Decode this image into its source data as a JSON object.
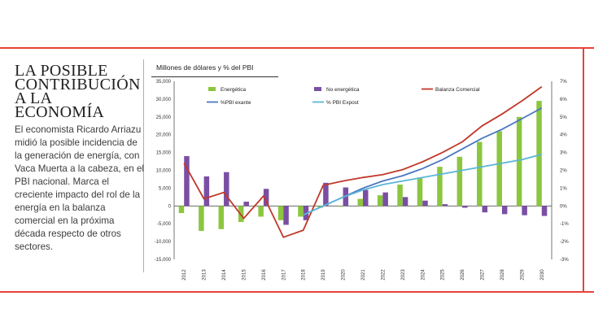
{
  "article": {
    "headline": [
      "LA POSIBLE",
      "CONTRIBUCIÓN",
      "A LA ECONOMÍA"
    ],
    "body": "El economista Ricardo Arriazu midió la posible incidencia de la generación de energía, con Vaca Muerta a la cabeza, en el PBI nacional. Marca el creciente impacto del rol de la energía en la balanza comercial en la próxima década respecto de otros sectores."
  },
  "chart_data": {
    "type": "bar",
    "title": "Millones de dólares y % del PBI",
    "categories": [
      "2012",
      "2013",
      "2014",
      "2015",
      "2016",
      "2017",
      "2018",
      "2019",
      "2020",
      "2021",
      "2022",
      "2023",
      "2024",
      "2025",
      "2026",
      "2027",
      "2028",
      "2029",
      "2030"
    ],
    "ylim": [
      -15000,
      35000
    ],
    "yticks": [
      "35,000",
      "30,000",
      "25,000",
      "20,000",
      "15,000",
      "10,000",
      "5,000",
      "0",
      "-5,000",
      "-10,000",
      "-15,000"
    ],
    "y2lim": [
      -3,
      7
    ],
    "y2ticks": [
      "7%",
      "6%",
      "5%",
      "4%",
      "3%",
      "2%",
      "1%",
      "0%",
      "-1%",
      "-2%",
      "-3%"
    ],
    "series": [
      {
        "name": "Energética",
        "kind": "bar",
        "axis": "left",
        "color": "#8cc63f",
        "values": [
          -2000,
          -7000,
          -6500,
          -4500,
          -3000,
          -4000,
          -3000,
          -500,
          -200,
          2000,
          3000,
          6000,
          8000,
          11000,
          13800,
          18000,
          21000,
          25000,
          29500
        ]
      },
      {
        "name": "No energética",
        "kind": "bar",
        "axis": "left",
        "color": "#7a4fa3",
        "values": [
          14000,
          8300,
          9500,
          1200,
          4800,
          -5300,
          -4000,
          6500,
          5200,
          4500,
          3800,
          2500,
          1500,
          500,
          -500,
          -1800,
          -2300,
          -2600,
          -2800
        ]
      },
      {
        "name": "Balanza Comercial",
        "kind": "line",
        "axis": "left",
        "color": "#c0392b",
        "values": [
          12000,
          2000,
          3800,
          -3500,
          2800,
          -8800,
          -6800,
          5800,
          7000,
          8000,
          8800,
          10200,
          12400,
          15000,
          18000,
          22500,
          25800,
          29500,
          33500
        ]
      },
      {
        "name": "%PBI exante",
        "kind": "line",
        "axis": "right",
        "color": "#4a78c2",
        "values": [
          null,
          null,
          null,
          null,
          null,
          null,
          -0.5,
          0.0,
          0.5,
          1.0,
          1.4,
          1.7,
          2.1,
          2.6,
          3.2,
          3.8,
          4.3,
          4.9,
          5.5
        ]
      },
      {
        "name": "% PBI Expost",
        "kind": "line",
        "axis": "right",
        "color": "#5bb6d6",
        "values": [
          null,
          null,
          null,
          null,
          null,
          null,
          -0.5,
          0.0,
          0.5,
          0.9,
          1.2,
          1.4,
          1.6,
          1.8,
          2.0,
          2.2,
          2.4,
          2.6,
          2.9
        ]
      }
    ],
    "legend": [
      "Energética",
      "No energética",
      "Balanza Comercial",
      "%PBI exante",
      "% PBI Expost"
    ]
  }
}
